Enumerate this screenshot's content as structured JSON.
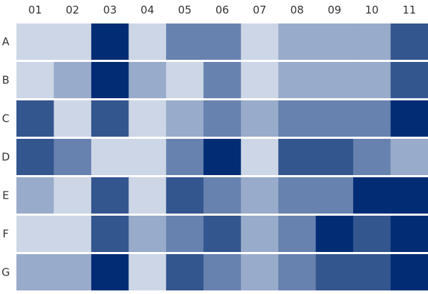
{
  "chart_data": {
    "type": "heatmap",
    "title": "",
    "xlabel": "",
    "ylabel": "",
    "x_categories": [
      "01",
      "02",
      "03",
      "04",
      "05",
      "06",
      "07",
      "08",
      "09",
      "10",
      "11"
    ],
    "y_categories": [
      "A",
      "B",
      "C",
      "D",
      "E",
      "F",
      "G"
    ],
    "levels": 5,
    "palette": [
      "#cdd6e6",
      "#99abcb",
      "#6882b0",
      "#34568f",
      "#022d75"
    ],
    "values": [
      [
        0,
        0,
        4,
        0,
        2,
        2,
        0,
        1,
        1,
        1,
        3
      ],
      [
        0,
        1,
        4,
        1,
        0,
        2,
        0,
        1,
        1,
        1,
        3
      ],
      [
        3,
        0,
        3,
        0,
        1,
        2,
        1,
        2,
        2,
        2,
        4
      ],
      [
        3,
        2,
        0,
        0,
        2,
        4,
        0,
        3,
        3,
        2,
        1
      ],
      [
        1,
        0,
        3,
        0,
        3,
        2,
        1,
        2,
        2,
        4,
        4
      ],
      [
        0,
        0,
        3,
        1,
        2,
        3,
        1,
        2,
        4,
        3,
        4
      ],
      [
        1,
        1,
        4,
        0,
        3,
        2,
        1,
        2,
        3,
        3,
        4
      ]
    ],
    "grid": false,
    "legend": "none",
    "x_axis_position": "top",
    "y_axis_position": "left"
  }
}
